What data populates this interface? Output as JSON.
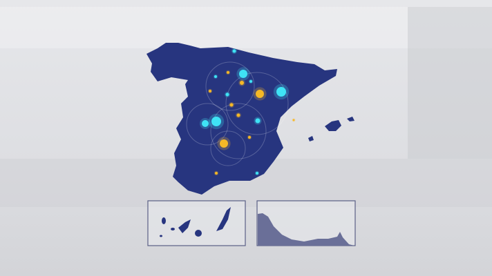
{
  "colors": {
    "map_fill": "#27357f",
    "inset_border": "#5a5f85",
    "inset_land": "#6a6f98",
    "dot_cyan": "#3fe3f5",
    "dot_gold": "#f6b826",
    "background": "#dcdde1"
  },
  "map": {
    "region": "Spain",
    "insets": [
      "canary-islands",
      "ceuta-melilla-coast"
    ]
  }
}
